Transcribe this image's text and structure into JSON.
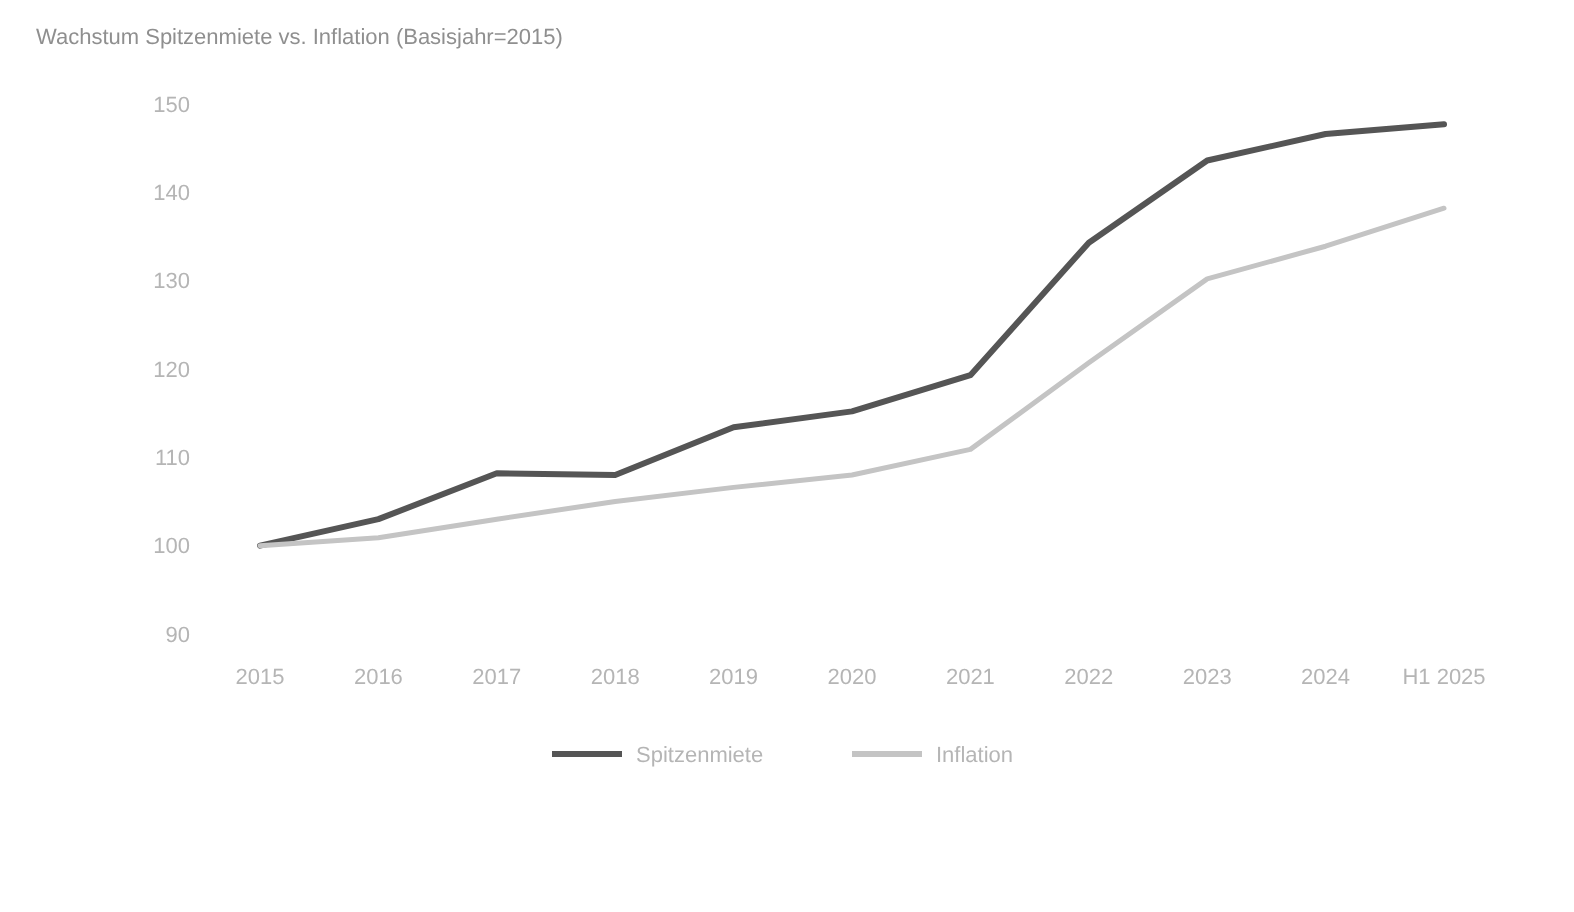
{
  "chart_data": {
    "type": "line",
    "title": "Wachstum Spitzenmiete vs. Inflation (Basisjahr=2015)",
    "categories": [
      "2015",
      "2016",
      "2017",
      "2018",
      "2019",
      "2020",
      "2021",
      "2022",
      "2023",
      "2024",
      "H1 2025"
    ],
    "series": [
      {
        "name": "Spitzenmiete",
        "color": "#555555",
        "values": [
          100,
          103,
          108.2,
          108,
          113.4,
          115.2,
          119.3,
          134.3,
          143.6,
          146.6,
          147.7
        ]
      },
      {
        "name": "Inflation",
        "color": "#c4c4c4",
        "values": [
          100,
          100.9,
          103,
          105,
          106.6,
          108,
          110.9,
          120.7,
          130.2,
          133.9,
          138.2
        ]
      }
    ],
    "ylim": [
      90,
      150
    ],
    "yticks": [
      90,
      100,
      110,
      120,
      130,
      140,
      150
    ],
    "grid": false,
    "legend": "bottom",
    "marker": "none",
    "line_style": "solid"
  }
}
